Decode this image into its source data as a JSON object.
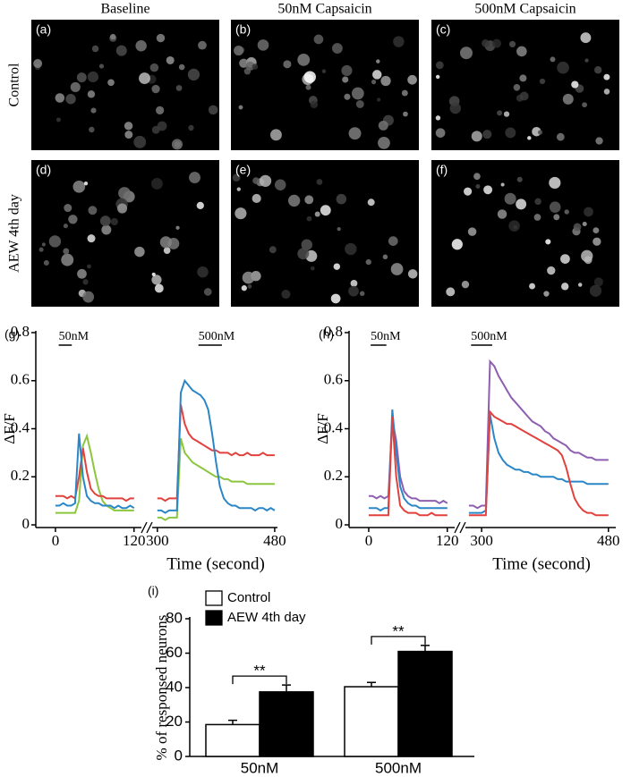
{
  "figure": {
    "column_titles": [
      "Baseline",
      "50nM Capsaicin",
      "500nM Capsaicin"
    ],
    "row_titles": [
      "Control",
      "AEW 4th day"
    ],
    "panel_labels": [
      "(a)",
      "(b)",
      "(c)",
      "(d)",
      "(e)",
      "(f)"
    ]
  },
  "chart_data": [
    {
      "type": "line",
      "panel_label": "(g)",
      "ylabel": "ΔF/F",
      "xlabel": "Time (second)",
      "ylim": [
        0,
        0.8
      ],
      "yticks": [
        0,
        0.2,
        0.4,
        0.6,
        0.8
      ],
      "x_segments": [
        {
          "xlim": [
            -30,
            134
          ],
          "xticks": [
            0,
            120
          ]
        },
        {
          "xlim": [
            292,
            487
          ],
          "xticks": [
            300,
            480
          ]
        }
      ],
      "stimuli": [
        {
          "label": "50nM",
          "start": 5,
          "end": 25
        },
        {
          "label": "500nM",
          "start": 363,
          "end": 399
        }
      ],
      "x": [
        0,
        6,
        12,
        18,
        24,
        30,
        36,
        42,
        48,
        54,
        60,
        66,
        72,
        78,
        84,
        90,
        96,
        102,
        108,
        114,
        120,
        300,
        306,
        312,
        318,
        324,
        330,
        336,
        342,
        348,
        354,
        360,
        366,
        372,
        378,
        384,
        390,
        396,
        402,
        408,
        414,
        420,
        426,
        432,
        438,
        444,
        450,
        456,
        462,
        468,
        474,
        480
      ],
      "series": [
        {
          "color": "#8cc63f",
          "values": [
            0.05,
            0.05,
            0.05,
            0.05,
            0.05,
            0.05,
            0.1,
            0.33,
            0.37,
            0.3,
            0.22,
            0.15,
            0.1,
            0.08,
            0.07,
            0.06,
            0.06,
            0.06,
            0.06,
            0.06,
            0.06,
            0.03,
            0.03,
            0.02,
            0.03,
            0.03,
            0.03,
            0.36,
            0.3,
            0.28,
            0.26,
            0.25,
            0.24,
            0.23,
            0.22,
            0.21,
            0.2,
            0.2,
            0.19,
            0.19,
            0.18,
            0.18,
            0.18,
            0.18,
            0.17,
            0.17,
            0.17,
            0.17,
            0.17,
            0.17,
            0.17,
            0.17
          ]
        },
        {
          "color": "#e2413d",
          "values": [
            0.12,
            0.12,
            0.12,
            0.11,
            0.12,
            0.11,
            0.2,
            0.32,
            0.22,
            0.15,
            0.13,
            0.12,
            0.12,
            0.11,
            0.11,
            0.11,
            0.11,
            0.11,
            0.1,
            0.11,
            0.11,
            0.11,
            0.11,
            0.1,
            0.11,
            0.11,
            0.11,
            0.5,
            0.42,
            0.38,
            0.36,
            0.35,
            0.34,
            0.33,
            0.32,
            0.31,
            0.31,
            0.3,
            0.3,
            0.3,
            0.29,
            0.3,
            0.29,
            0.29,
            0.3,
            0.29,
            0.29,
            0.29,
            0.3,
            0.29,
            0.29,
            0.29
          ]
        },
        {
          "color": "#2b86c8",
          "values": [
            0.08,
            0.08,
            0.09,
            0.08,
            0.08,
            0.09,
            0.38,
            0.2,
            0.12,
            0.1,
            0.09,
            0.09,
            0.08,
            0.08,
            0.08,
            0.07,
            0.08,
            0.07,
            0.07,
            0.08,
            0.07,
            0.06,
            0.06,
            0.05,
            0.06,
            0.06,
            0.06,
            0.55,
            0.6,
            0.58,
            0.56,
            0.55,
            0.54,
            0.52,
            0.48,
            0.38,
            0.26,
            0.16,
            0.11,
            0.09,
            0.08,
            0.08,
            0.07,
            0.07,
            0.07,
            0.07,
            0.06,
            0.07,
            0.07,
            0.06,
            0.07,
            0.06
          ]
        }
      ]
    },
    {
      "type": "line",
      "panel_label": "(h)",
      "ylabel": "ΔF/F",
      "xlabel": "Time (second)",
      "ylim": [
        0,
        0.8
      ],
      "yticks": [
        0,
        0.2,
        0.4,
        0.6,
        0.8
      ],
      "x_segments": [
        {
          "xlim": [
            -30,
            134
          ],
          "xticks": [
            0,
            120
          ]
        },
        {
          "xlim": [
            277,
            493
          ],
          "xticks": [
            300,
            480
          ]
        }
      ],
      "stimuli": [
        {
          "label": "50nM",
          "start": 3,
          "end": 27
        },
        {
          "label": "500nM",
          "start": 285,
          "end": 315
        }
      ],
      "x": [
        0,
        6,
        12,
        18,
        24,
        30,
        36,
        42,
        48,
        54,
        60,
        66,
        72,
        78,
        84,
        90,
        96,
        102,
        108,
        114,
        120,
        282,
        288,
        294,
        300,
        306,
        312,
        318,
        324,
        330,
        336,
        342,
        348,
        354,
        360,
        366,
        372,
        378,
        384,
        390,
        396,
        402,
        408,
        414,
        420,
        426,
        432,
        438,
        444,
        450,
        456,
        462,
        468,
        474,
        480
      ],
      "series": [
        {
          "color": "#8e5fb0",
          "values": [
            0.12,
            0.12,
            0.11,
            0.12,
            0.11,
            0.12,
            0.44,
            0.35,
            0.2,
            0.14,
            0.12,
            0.11,
            0.11,
            0.1,
            0.1,
            0.1,
            0.1,
            0.1,
            0.09,
            0.1,
            0.09,
            0.08,
            0.08,
            0.07,
            0.08,
            0.08,
            0.68,
            0.66,
            0.62,
            0.59,
            0.56,
            0.53,
            0.51,
            0.49,
            0.47,
            0.45,
            0.43,
            0.42,
            0.41,
            0.39,
            0.38,
            0.36,
            0.35,
            0.34,
            0.33,
            0.31,
            0.3,
            0.3,
            0.29,
            0.28,
            0.28,
            0.27,
            0.27,
            0.27,
            0.27
          ]
        },
        {
          "color": "#2b86c8",
          "values": [
            0.07,
            0.07,
            0.07,
            0.06,
            0.07,
            0.07,
            0.48,
            0.3,
            0.16,
            0.11,
            0.09,
            0.08,
            0.08,
            0.07,
            0.07,
            0.07,
            0.07,
            0.07,
            0.07,
            0.07,
            0.07,
            0.05,
            0.05,
            0.05,
            0.05,
            0.06,
            0.46,
            0.36,
            0.3,
            0.27,
            0.25,
            0.24,
            0.23,
            0.23,
            0.22,
            0.22,
            0.21,
            0.21,
            0.2,
            0.2,
            0.2,
            0.2,
            0.19,
            0.19,
            0.18,
            0.18,
            0.18,
            0.18,
            0.18,
            0.17,
            0.17,
            0.17,
            0.17,
            0.17,
            0.17
          ]
        },
        {
          "color": "#e2413d",
          "values": [
            0.04,
            0.04,
            0.04,
            0.04,
            0.04,
            0.04,
            0.45,
            0.2,
            0.08,
            0.06,
            0.05,
            0.05,
            0.05,
            0.04,
            0.04,
            0.04,
            0.05,
            0.04,
            0.04,
            0.04,
            0.04,
            0.04,
            0.04,
            0.04,
            0.04,
            0.04,
            0.47,
            0.45,
            0.44,
            0.43,
            0.42,
            0.42,
            0.41,
            0.4,
            0.39,
            0.38,
            0.37,
            0.36,
            0.35,
            0.34,
            0.33,
            0.32,
            0.31,
            0.29,
            0.24,
            0.17,
            0.11,
            0.08,
            0.06,
            0.05,
            0.05,
            0.04,
            0.04,
            0.04,
            0.04
          ]
        }
      ]
    },
    {
      "type": "bar",
      "panel_label": "(i)",
      "ylabel": "% of responsed neurons",
      "categories": [
        "50nM",
        "500nM"
      ],
      "ylim": [
        0,
        80
      ],
      "yticks": [
        0,
        20,
        40,
        60,
        80
      ],
      "series": [
        {
          "name": "Control",
          "color": "#ffffff",
          "values": [
            18.5,
            40.5
          ],
          "errors": [
            2.5,
            2.5
          ]
        },
        {
          "name": "AEW 4th day",
          "color": "#000000",
          "values": [
            37.5,
            61
          ],
          "errors": [
            4,
            3.5
          ]
        }
      ],
      "significance": [
        "**",
        "**"
      ]
    }
  ]
}
